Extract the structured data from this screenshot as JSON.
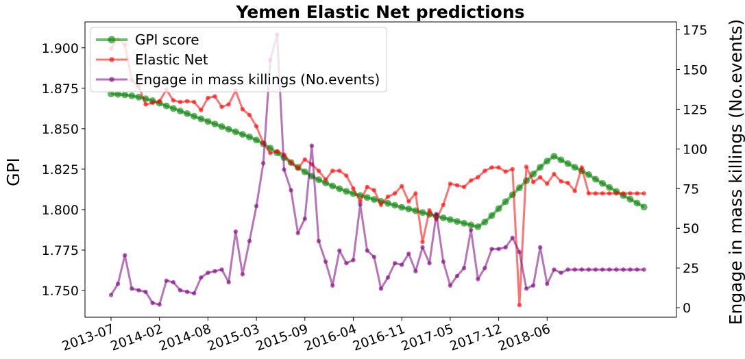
{
  "chart_data": {
    "type": "line",
    "title": "Yemen Elastic Net predictions",
    "ylabel": "GPI",
    "y2label": "Engage in mass killings (No.events)",
    "xlabel": "",
    "ylim": [
      1.7335,
      1.916
    ],
    "y2lim": [
      -6,
      180
    ],
    "yticks": [
      "1.750",
      "1.775",
      "1.800",
      "1.825",
      "1.850",
      "1.875",
      "1.900"
    ],
    "y2ticks": [
      "0",
      "25",
      "50",
      "75",
      "100",
      "125",
      "150",
      "175"
    ],
    "xticks": [
      "2013-07",
      "2014-02",
      "2014-08",
      "2015-03",
      "2015-09",
      "2016-04",
      "2016-11",
      "2017-05",
      "2017-12",
      "2018-06"
    ],
    "legend_position": "top-left",
    "grid": false,
    "n_points": 78,
    "series": [
      {
        "name": "GPI score",
        "axis": "left",
        "color": "#008000",
        "values": [
          1.8715,
          1.8713,
          1.8709,
          1.8703,
          1.8695,
          1.8685,
          1.8673,
          1.8658,
          1.8641,
          1.8625,
          1.8609,
          1.8593,
          1.8577,
          1.8561,
          1.8545,
          1.8529,
          1.8513,
          1.8497,
          1.8481,
          1.8465,
          1.8449,
          1.843,
          1.8407,
          1.838,
          1.8351,
          1.8321,
          1.8291,
          1.8261,
          1.8233,
          1.8207,
          1.8185,
          1.8165,
          1.8146,
          1.8129,
          1.8113,
          1.8099,
          1.8087,
          1.8075,
          1.8063,
          1.8051,
          1.8039,
          1.8027,
          1.8014,
          1.8004,
          1.7993,
          1.7982,
          1.7971,
          1.796,
          1.7949,
          1.7938,
          1.7927,
          1.7916,
          1.7905,
          1.7894,
          1.7923,
          1.7963,
          1.8006,
          1.8049,
          1.8092,
          1.8135,
          1.8178,
          1.822,
          1.8262,
          1.83,
          1.833,
          1.8307,
          1.8284,
          1.8262,
          1.824,
          1.8216,
          1.8188,
          1.8162,
          1.8137,
          1.8112,
          1.8088,
          1.8064,
          1.804,
          1.8016
        ]
      },
      {
        "name": "Elastic Net",
        "axis": "left",
        "color": "#ff0000",
        "values": [
          1.8995,
          1.9055,
          1.902,
          1.88,
          1.876,
          1.865,
          1.866,
          1.867,
          1.874,
          1.8675,
          1.8665,
          1.867,
          1.8665,
          1.8615,
          1.869,
          1.87,
          1.8635,
          1.865,
          1.8735,
          1.862,
          1.8585,
          1.8515,
          1.841,
          1.835,
          1.836,
          1.834,
          1.829,
          1.8255,
          1.831,
          1.828,
          1.824,
          1.8185,
          1.824,
          1.824,
          1.821,
          1.813,
          1.805,
          1.814,
          1.812,
          1.803,
          1.808,
          1.81,
          1.8145,
          1.805,
          1.81,
          1.78,
          1.7995,
          1.794,
          1.803,
          1.816,
          1.815,
          1.814,
          1.818,
          1.82,
          1.824,
          1.826,
          1.826,
          1.8235,
          1.825,
          1.741,
          1.8265,
          1.817,
          1.82,
          1.816,
          1.822,
          1.8175,
          1.8165,
          1.8115,
          1.826,
          1.81,
          1.81,
          1.81,
          1.81,
          1.81,
          1.81,
          1.81,
          1.81,
          1.81
        ]
      },
      {
        "name": "Engage in mass killings (No.events)",
        "axis": "right",
        "color": "#800080",
        "values": [
          8,
          15,
          33,
          12,
          11,
          10,
          3,
          2,
          17,
          16,
          11,
          10,
          9,
          19,
          22,
          23,
          24,
          16,
          48,
          21,
          42,
          64,
          91,
          156,
          172,
          87,
          74,
          47,
          56,
          102,
          42,
          29,
          14,
          36,
          28,
          30,
          65,
          36,
          32,
          12,
          19,
          28,
          27,
          34,
          23,
          38,
          28,
          59,
          29,
          14,
          20,
          25,
          49,
          18,
          25,
          37,
          37,
          38,
          44,
          35,
          12,
          14,
          38,
          15,
          24,
          22,
          24,
          24,
          24,
          24,
          24,
          24,
          24,
          24,
          24,
          24,
          24,
          24
        ]
      }
    ]
  }
}
